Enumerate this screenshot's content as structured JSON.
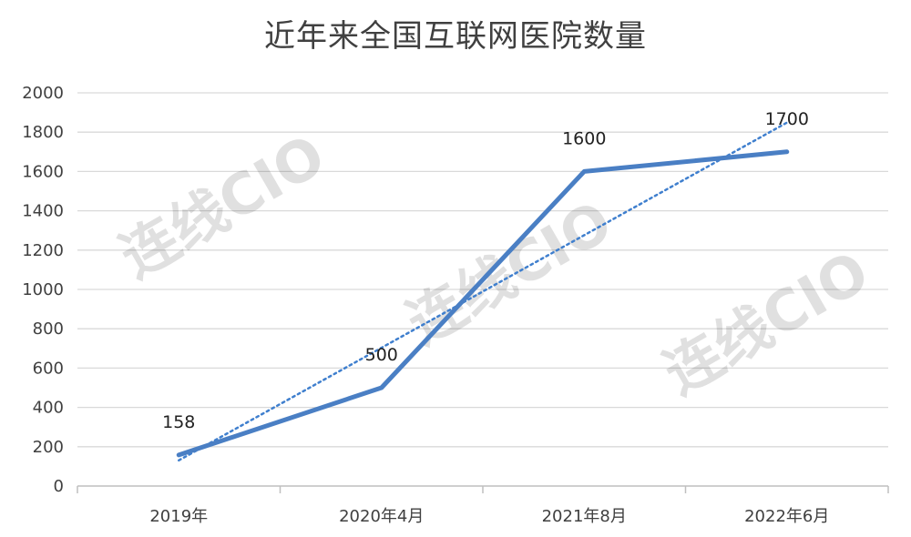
{
  "chart_data": {
    "type": "line",
    "title": "近年来全国互联网医院数量",
    "categories": [
      "2019年",
      "2020年4月",
      "2021年8月",
      "2022年6月"
    ],
    "series": [
      {
        "values": [
          158,
          500,
          1600,
          1700
        ],
        "color": "#4a7fc4"
      }
    ],
    "trendline": {
      "type": "linear",
      "color": "#3f7fce",
      "style": "dotted"
    },
    "data_labels": [
      "158",
      "500",
      "1600",
      "1700"
    ],
    "y_ticks": [
      "0",
      "200",
      "400",
      "600",
      "800",
      "1000",
      "1200",
      "1400",
      "1600",
      "1800",
      "2000"
    ],
    "ylim": [
      0,
      2000
    ],
    "grid": true,
    "legend": "none"
  },
  "watermark": {
    "text": "连线CIO"
  }
}
